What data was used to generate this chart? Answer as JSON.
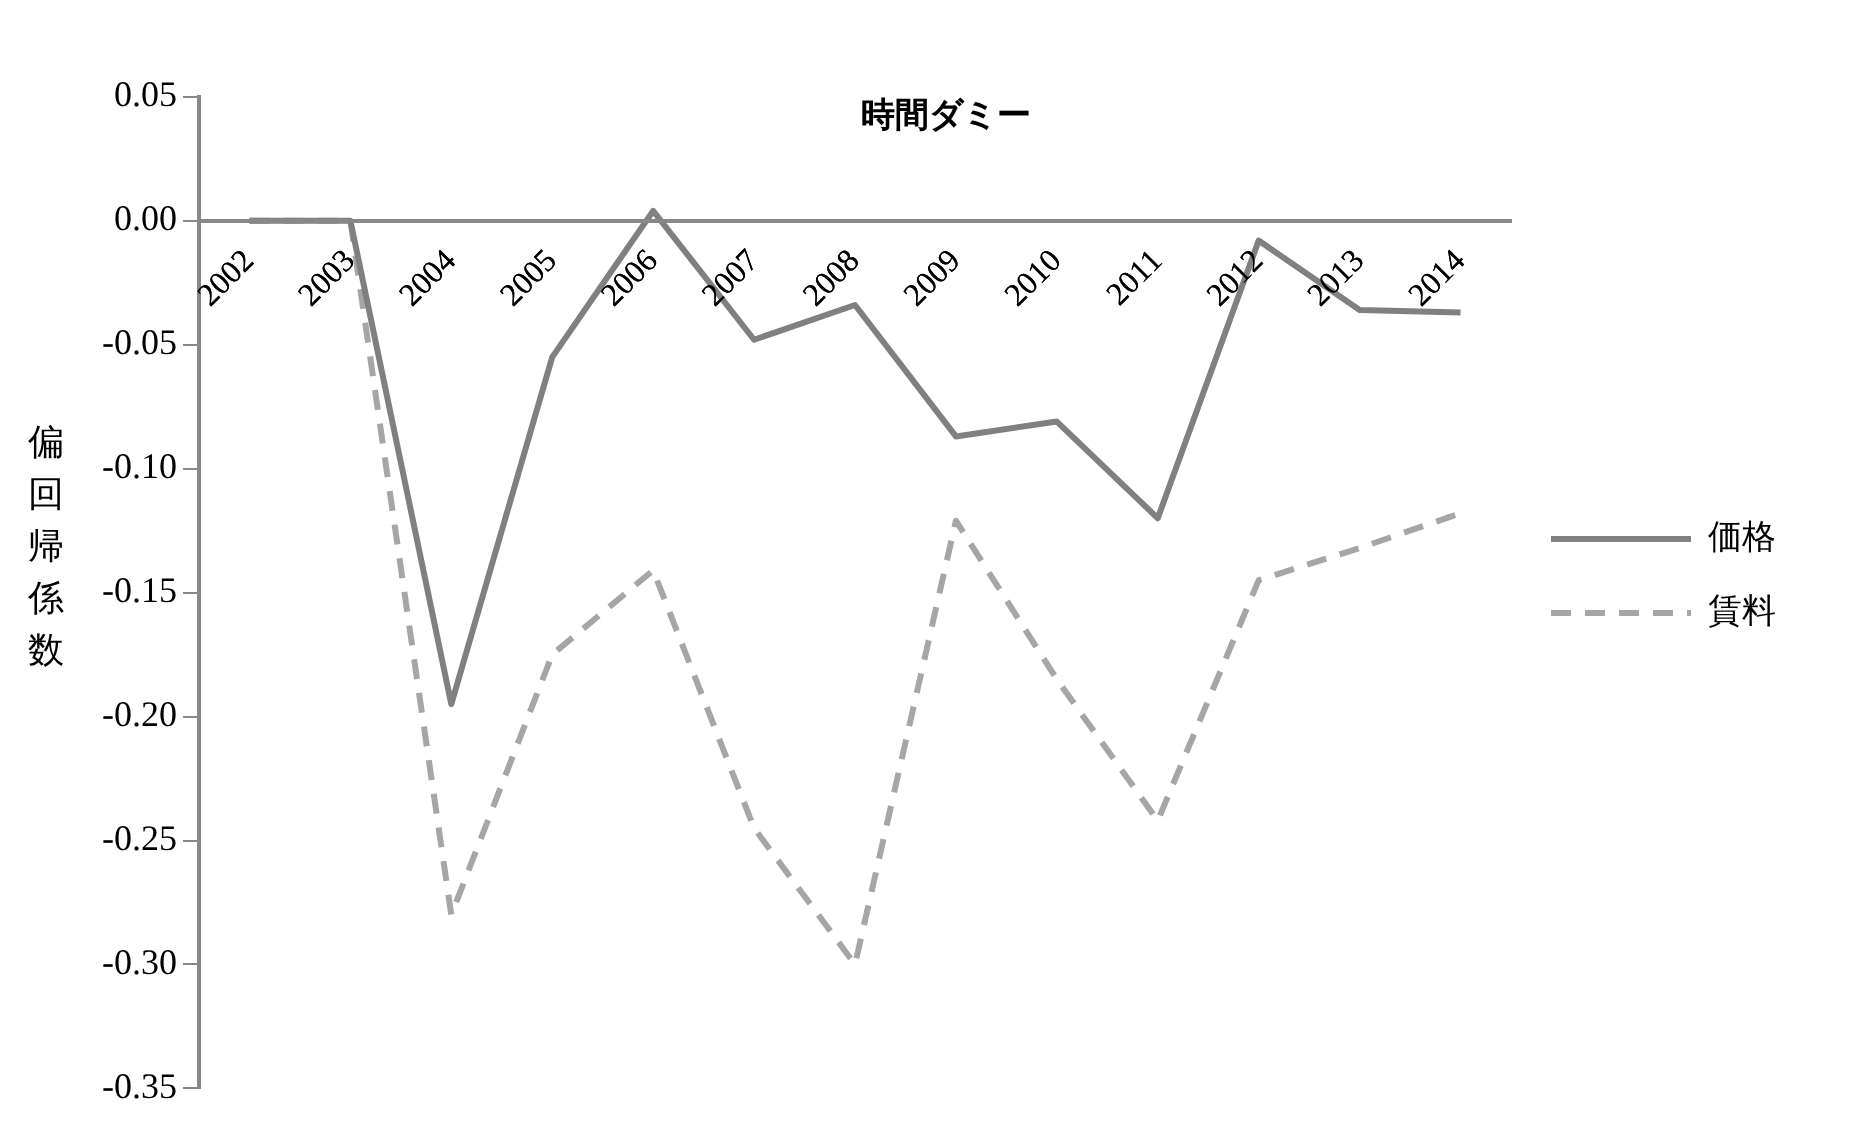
{
  "chart_data": {
    "type": "line",
    "title": "時間ダミー",
    "ylabel": "偏回帰係数",
    "categories": [
      "2002",
      "2003",
      "2004",
      "2005",
      "2006",
      "2007",
      "2008",
      "2009",
      "2010",
      "2011",
      "2012",
      "2013",
      "2014"
    ],
    "series": [
      {
        "name": "価格",
        "color": "#808080",
        "line_style": "solid",
        "values": [
          0,
          0,
          -0.195,
          -0.055,
          0.004,
          -0.048,
          -0.034,
          -0.087,
          -0.081,
          -0.12,
          -0.008,
          -0.036,
          -0.037
        ]
      },
      {
        "name": "賃料",
        "color": "#a6a6a6",
        "line_style": "dashed",
        "values": [
          0,
          0,
          -0.28,
          -0.175,
          -0.141,
          -0.245,
          -0.3,
          -0.121,
          -0.185,
          -0.242,
          -0.145,
          -0.132,
          -0.118
        ]
      }
    ],
    "ylim": [
      -0.35,
      0.05
    ],
    "yticks": [
      {
        "value": 0.05,
        "label": "0.05"
      },
      {
        "value": 0,
        "label": "0.00"
      },
      {
        "value": -0.05,
        "label": "-0.05"
      },
      {
        "value": -0.1,
        "label": "-0.10"
      },
      {
        "value": -0.15,
        "label": "-0.15"
      },
      {
        "value": -0.2,
        "label": "-0.20"
      },
      {
        "value": -0.25,
        "label": "-0.25"
      },
      {
        "value": -0.3,
        "label": "-0.30"
      },
      {
        "value": -0.35,
        "label": "-0.35"
      }
    ],
    "grid": false,
    "legend": "right",
    "marker": "none"
  }
}
